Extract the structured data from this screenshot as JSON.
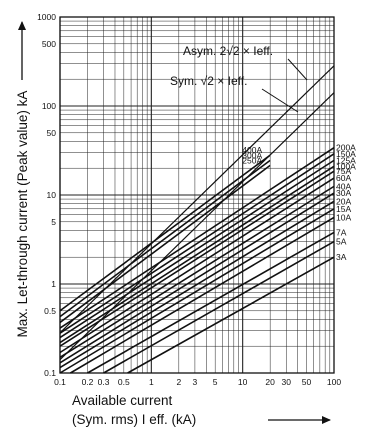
{
  "chart_data": {
    "type": "line",
    "xscale": "log",
    "yscale": "log",
    "xlim": [
      0.1,
      100
    ],
    "ylim": [
      0.1,
      1000
    ],
    "grid": true,
    "xlabel_lines": [
      "Available current",
      "(Sym. rms) I eff. (kA)"
    ],
    "ylabel": "Max. Let-through current (Peak value) kA",
    "x_ticks": [
      {
        "v": 0.1,
        "t": "0.1"
      },
      {
        "v": 0.2,
        "t": "0.2"
      },
      {
        "v": 0.3,
        "t": "0.3"
      },
      {
        "v": 0.5,
        "t": "0.5"
      },
      {
        "v": 1,
        "t": "1"
      },
      {
        "v": 2,
        "t": "2"
      },
      {
        "v": 3,
        "t": "3"
      },
      {
        "v": 5,
        "t": "5"
      },
      {
        "v": 10,
        "t": "10"
      },
      {
        "v": 20,
        "t": "20"
      },
      {
        "v": 30,
        "t": "30"
      },
      {
        "v": 50,
        "t": "50"
      },
      {
        "v": 100,
        "t": "100"
      }
    ],
    "y_ticks": [
      {
        "v": 0.1,
        "t": "0.1"
      },
      {
        "v": 0.5,
        "t": "0.5"
      },
      {
        "v": 1,
        "t": "1"
      },
      {
        "v": 5,
        "t": "5"
      },
      {
        "v": 10,
        "t": "10"
      },
      {
        "v": 50,
        "t": "50"
      },
      {
        "v": 100,
        "t": "100"
      },
      {
        "v": 500,
        "t": "500"
      },
      {
        "v": 1000,
        "t": "1000"
      }
    ],
    "reference_lines": [
      {
        "name": "Asym. 2√2 × Ieff.",
        "x": [
          0.1,
          100
        ],
        "y": [
          0.283,
          283
        ]
      },
      {
        "name": "Sym. √2 × Ieff.",
        "x": [
          0.1,
          100
        ],
        "y": [
          0.141,
          141
        ]
      }
    ],
    "series": [
      {
        "name": "400A",
        "x": [
          0.1,
          20
        ],
        "y": [
          0.5,
          28
        ]
      },
      {
        "name": "300A",
        "x": [
          0.1,
          20
        ],
        "y": [
          0.43,
          24.5
        ]
      },
      {
        "name": "250A",
        "x": [
          0.1,
          20
        ],
        "y": [
          0.37,
          21.5
        ]
      },
      {
        "name": "200A",
        "x": [
          0.1,
          100
        ],
        "y": [
          0.32,
          34
        ]
      },
      {
        "name": "150A",
        "x": [
          0.1,
          100
        ],
        "y": [
          0.28,
          29
        ]
      },
      {
        "name": "125A",
        "x": [
          0.1,
          100
        ],
        "y": [
          0.25,
          24.5
        ]
      },
      {
        "name": "100A",
        "x": [
          0.1,
          100
        ],
        "y": [
          0.22,
          21
        ]
      },
      {
        "name": "75A",
        "x": [
          0.1,
          100
        ],
        "y": [
          0.2,
          18.5
        ]
      },
      {
        "name": "60A",
        "x": [
          0.1,
          100
        ],
        "y": [
          0.17,
          15.5
        ]
      },
      {
        "name": "40A",
        "x": [
          0.1,
          100
        ],
        "y": [
          0.15,
          12.5
        ]
      },
      {
        "name": "30A",
        "x": [
          0.1,
          100
        ],
        "y": [
          0.13,
          10.5
        ]
      },
      {
        "name": "20A",
        "x": [
          0.1,
          100
        ],
        "y": [
          0.115,
          8.5
        ]
      },
      {
        "name": "15A",
        "x": [
          0.1,
          100
        ],
        "y": [
          0.1,
          7
        ]
      },
      {
        "name": "10A",
        "x": [
          0.13,
          100
        ],
        "y": [
          0.1,
          5.6
        ]
      },
      {
        "name": "7A",
        "x": [
          0.2,
          100
        ],
        "y": [
          0.1,
          3.8
        ]
      },
      {
        "name": "5A",
        "x": [
          0.3,
          100
        ],
        "y": [
          0.1,
          3.0
        ]
      },
      {
        "name": "3A",
        "x": [
          0.55,
          100
        ],
        "y": [
          0.1,
          2.0
        ]
      }
    ]
  }
}
